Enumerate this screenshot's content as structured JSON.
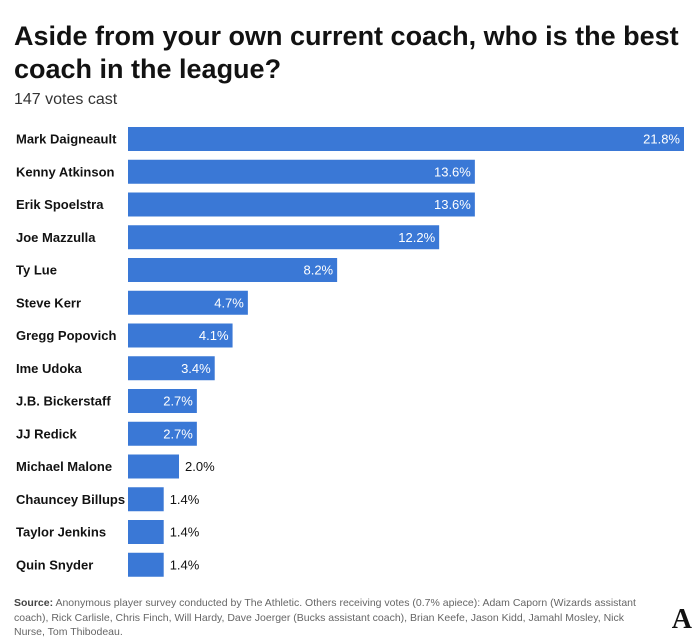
{
  "header": {
    "title": "Aside from your own current coach, who is the best coach in the league?",
    "subtitle": "147 votes cast"
  },
  "colors": {
    "bar": "#3a78d6",
    "label_inside": "#ffffff",
    "label_outside": "#121212"
  },
  "chart_data": {
    "type": "bar",
    "orientation": "horizontal",
    "categories": [
      "Mark Daigneault",
      "Kenny Atkinson",
      "Erik Spoelstra",
      "Joe Mazzulla",
      "Ty Lue",
      "Steve Kerr",
      "Gregg Popovich",
      "Ime Udoka",
      "J.B. Bickerstaff",
      "JJ Redick",
      "Michael Malone",
      "Chauncey Billups",
      "Taylor Jenkins",
      "Quin Snyder"
    ],
    "values": [
      21.8,
      13.6,
      13.6,
      12.2,
      8.2,
      4.7,
      4.1,
      3.4,
      2.7,
      2.7,
      2.0,
      1.4,
      1.4,
      1.4
    ],
    "value_labels": [
      "21.8%",
      "13.6%",
      "13.6%",
      "12.2%",
      "8.2%",
      "4.7%",
      "4.1%",
      "3.4%",
      "2.7%",
      "2.7%",
      "2.0%",
      "1.4%",
      "1.4%",
      "1.4%"
    ],
    "xlim": [
      0,
      21.8
    ],
    "grid": false,
    "legend": "none"
  },
  "footer": {
    "source_label": "Source:",
    "source_text": "Anonymous player survey conducted by The Athletic. Others receiving votes (0.7% apiece): Adam Caporn (Wizards assistant coach), Rick Carlisle, Chris Finch, Will Hardy, Dave Joerger (Bucks assistant coach), Brian Keefe, Jason Kidd, Jamahl Mosley, Nick Nurse, Tom Thibodeau.",
    "logo_letter": "A",
    "logo_icon": "athletic-logo-icon"
  }
}
